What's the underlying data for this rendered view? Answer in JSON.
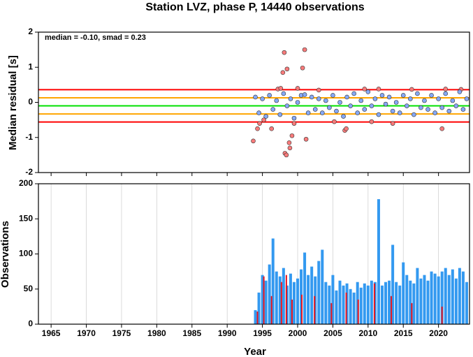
{
  "chart_data": [
    {
      "type": "scatter",
      "title": "Station LVZ, phase P, 14440 observations",
      "ylabel": "Median residual [s]",
      "annotation": "median = -0.10, smad = 0.23",
      "xlim": [
        1963.2,
        2024.4
      ],
      "xticks": [
        1965,
        1970,
        1975,
        1980,
        1985,
        1990,
        1995,
        2000,
        2005,
        2010,
        2015,
        2020
      ],
      "ylim": [
        -2,
        2
      ],
      "yticks": [
        -2,
        -1,
        0,
        1,
        2
      ],
      "hlines": [
        {
          "value": 0.36,
          "color": "#ff0000"
        },
        {
          "value": -0.56,
          "color": "#ff0000"
        },
        {
          "value": 0.13,
          "color": "#ffa500"
        },
        {
          "value": -0.33,
          "color": "#ffa500"
        },
        {
          "value": -0.1,
          "color": "#00e000"
        }
      ],
      "series": [
        {
          "color": "#f87b7b",
          "x": [
            1993.7,
            1994.3,
            1994.6,
            1995.2,
            1996.3,
            1997.2,
            1997.6,
            1997.9,
            1998.1,
            1998.2,
            1998.4,
            1998.5,
            1998.8,
            1998.9,
            1999.2,
            1999.5,
            2000.0,
            2000.7,
            2001.0,
            2001.2,
            2003.0,
            2005.2,
            2006.7,
            2006.9,
            2009.5,
            2010.5,
            2011.5,
            2013.5,
            2016.2,
            2020.5,
            2021.0,
            2023.2
          ],
          "values": [
            -1.1,
            -0.75,
            -0.6,
            -0.5,
            -0.75,
            0.38,
            0.4,
            0.85,
            1.42,
            -1.45,
            -1.5,
            0.95,
            -1.15,
            -1.3,
            -0.95,
            -0.6,
            0.4,
            0.98,
            1.5,
            -1.05,
            0.35,
            -0.55,
            -0.8,
            -0.75,
            0.38,
            -0.55,
            0.38,
            -0.6,
            0.37,
            -0.75,
            0.38,
            0.37
          ]
        },
        {
          "color": "#86a8f5",
          "x": [
            1994.0,
            1994.5,
            1995.0,
            1995.5,
            1996.0,
            1996.5,
            1997.0,
            1997.5,
            1998.0,
            1998.5,
            1999.0,
            1999.5,
            2000.0,
            2000.5,
            2001.0,
            2001.5,
            2002.0,
            2002.5,
            2003.0,
            2003.5,
            2004.0,
            2004.5,
            2005.0,
            2005.5,
            2006.0,
            2006.5,
            2007.0,
            2007.5,
            2008.0,
            2008.5,
            2009.0,
            2009.5,
            2010.0,
            2010.5,
            2011.0,
            2011.5,
            2012.0,
            2012.5,
            2013.0,
            2013.5,
            2014.0,
            2014.5,
            2015.0,
            2015.5,
            2016.0,
            2016.5,
            2017.0,
            2017.5,
            2018.0,
            2018.5,
            2019.0,
            2019.5,
            2020.0,
            2020.5,
            2021.0,
            2021.5,
            2022.0,
            2022.5,
            2023.0,
            2023.5,
            2024.0
          ],
          "values": [
            0.15,
            -0.3,
            0.1,
            -0.4,
            0.2,
            -0.2,
            0.05,
            -0.35,
            0.25,
            -0.1,
            0.1,
            -0.45,
            0.0,
            0.2,
            0.22,
            -0.3,
            0.15,
            -0.2,
            0.1,
            -0.3,
            0.05,
            -0.15,
            0.2,
            -0.25,
            0.0,
            -0.4,
            0.15,
            -0.1,
            0.25,
            -0.3,
            0.05,
            -0.2,
            0.3,
            -0.1,
            0.1,
            -0.35,
            0.2,
            -0.05,
            0.15,
            -0.25,
            0.0,
            -0.3,
            0.2,
            -0.1,
            0.1,
            -0.35,
            0.25,
            -0.15,
            0.05,
            -0.2,
            0.2,
            -0.3,
            0.1,
            -0.15,
            0.25,
            -0.25,
            0.05,
            -0.1,
            0.3,
            -0.2,
            0.1
          ]
        }
      ]
    },
    {
      "type": "bar",
      "xlabel": "Year",
      "ylabel": "Observations",
      "xlim": [
        1963.2,
        2024.4
      ],
      "xticks": [
        1965,
        1970,
        1975,
        1980,
        1985,
        1990,
        1995,
        2000,
        2005,
        2010,
        2015,
        2020
      ],
      "ylim": [
        0,
        200
      ],
      "yticks": [
        0,
        50,
        100,
        150,
        200
      ],
      "grid": true,
      "series": [
        {
          "color": "#3399f0",
          "x": [
            1994.0,
            1994.5,
            1995.0,
            1995.5,
            1996.0,
            1996.5,
            1997.0,
            1997.5,
            1998.0,
            1998.5,
            1999.0,
            1999.5,
            2000.0,
            2000.5,
            2001.0,
            2001.5,
            2002.0,
            2002.5,
            2003.0,
            2003.5,
            2004.0,
            2004.5,
            2005.0,
            2005.5,
            2006.0,
            2006.5,
            2007.0,
            2007.5,
            2008.0,
            2008.5,
            2009.0,
            2009.5,
            2010.0,
            2010.5,
            2011.0,
            2011.5,
            2012.0,
            2012.5,
            2013.0,
            2013.5,
            2014.0,
            2014.5,
            2015.0,
            2015.5,
            2016.0,
            2016.5,
            2017.0,
            2017.5,
            2018.0,
            2018.5,
            2019.0,
            2019.5,
            2020.0,
            2020.5,
            2021.0,
            2021.5,
            2022.0,
            2022.5,
            2023.0,
            2023.5,
            2024.0
          ],
          "values": [
            20,
            45,
            70,
            62,
            85,
            122,
            75,
            68,
            80,
            55,
            72,
            60,
            65,
            78,
            102,
            70,
            82,
            68,
            90,
            106,
            60,
            55,
            70,
            48,
            62,
            55,
            58,
            50,
            45,
            60,
            52,
            58,
            55,
            62,
            60,
            178,
            55,
            60,
            62,
            113,
            60,
            55,
            88,
            70,
            62,
            58,
            80,
            65,
            70,
            62,
            75,
            72,
            68,
            75,
            80,
            70,
            78,
            65,
            80,
            75,
            60
          ]
        },
        {
          "color": "#e8141e",
          "x": [
            1994.3,
            1995.2,
            1996.3,
            1997.7,
            1998.4,
            1999.2,
            2000.6,
            2002.4,
            2004.8,
            2006.9,
            2008.6,
            2010.9,
            2013.3,
            2016.2,
            2020.5
          ],
          "values": [
            18,
            68,
            40,
            60,
            70,
            35,
            42,
            40,
            30,
            45,
            35,
            58,
            40,
            30,
            25
          ]
        }
      ]
    }
  ]
}
